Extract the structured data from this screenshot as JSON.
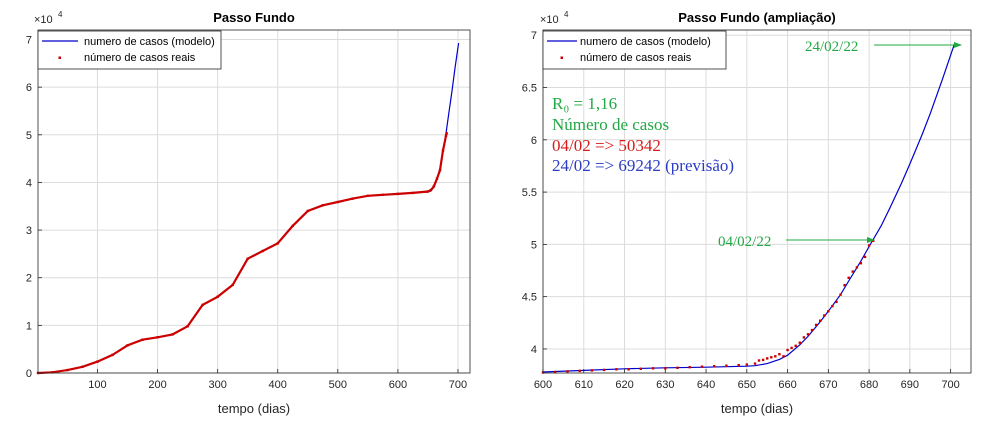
{
  "colors": {
    "model": "#0000cc",
    "real": "#cc0000",
    "green_text": "#22a845",
    "red_text": "#d61b1b",
    "blue_text": "#2b3cc4",
    "arrow": "#22a845",
    "grid": "#dcdcdc",
    "axis": "#262626"
  },
  "chart_data": [
    {
      "type": "line",
      "title": "Passo Fundo",
      "xlabel": "tempo (dias)",
      "ylabel": "",
      "exponent_label": "×10",
      "exponent_power": "4",
      "xlim": [
        1,
        720
      ],
      "ylim": [
        0,
        72000
      ],
      "xticks": [
        100,
        200,
        300,
        400,
        500,
        600,
        700
      ],
      "yticks": [
        0,
        10000,
        20000,
        30000,
        40000,
        50000,
        60000,
        70000
      ],
      "ytick_labels": [
        "0",
        "1",
        "2",
        "3",
        "4",
        "5",
        "6",
        "7"
      ],
      "grid": true,
      "legend_position": "top-left",
      "series": [
        {
          "name": "numero de casos (modelo)",
          "style": "line",
          "x": [
            1,
            25,
            50,
            75,
            100,
            125,
            150,
            175,
            200,
            225,
            250,
            275,
            300,
            325,
            350,
            375,
            400,
            425,
            450,
            475,
            500,
            525,
            550,
            575,
            600,
            625,
            650,
            655,
            660,
            665,
            670,
            675,
            680,
            685,
            690,
            695,
            701
          ],
          "y": [
            0,
            150,
            600,
            1300,
            2400,
            3800,
            5800,
            7000,
            7500,
            8100,
            9800,
            14300,
            16000,
            18500,
            24000,
            25600,
            27200,
            30900,
            34000,
            35200,
            35900,
            36600,
            37200,
            37400,
            37600,
            37800,
            38000,
            38200,
            39000,
            40600,
            42900,
            46500,
            50300,
            54800,
            59200,
            64000,
            69242
          ]
        },
        {
          "name": "número de casos reais",
          "style": "dots",
          "x": [
            1,
            25,
            50,
            75,
            100,
            125,
            150,
            175,
            200,
            225,
            250,
            275,
            300,
            325,
            350,
            375,
            400,
            425,
            450,
            475,
            500,
            525,
            550,
            575,
            600,
            625,
            650,
            655,
            660,
            665,
            670,
            675,
            680,
            681
          ],
          "y": [
            0,
            150,
            600,
            1300,
            2400,
            3800,
            5800,
            7000,
            7500,
            8100,
            9800,
            14300,
            16000,
            18500,
            24000,
            25600,
            27200,
            30900,
            34000,
            35200,
            35900,
            36600,
            37200,
            37400,
            37600,
            37800,
            38100,
            38400,
            39200,
            40800,
            42600,
            46700,
            49800,
            50342
          ]
        }
      ]
    },
    {
      "type": "line",
      "title": "Passo Fundo (ampliação)",
      "xlabel": "tempo (dias)",
      "ylabel": "",
      "exponent_label": "×10",
      "exponent_power": "4",
      "xlim": [
        600,
        705
      ],
      "ylim": [
        37700,
        70500
      ],
      "xticks": [
        600,
        610,
        620,
        630,
        640,
        650,
        660,
        670,
        680,
        690,
        700
      ],
      "yticks": [
        40000,
        45000,
        50000,
        55000,
        60000,
        65000,
        70000
      ],
      "ytick_labels": [
        "4",
        "4.5",
        "5",
        "5.5",
        "6",
        "6.5",
        "7"
      ],
      "grid": true,
      "legend_position": "top-left",
      "series": [
        {
          "name": "numero de casos (modelo)",
          "style": "line",
          "x": [
            600,
            610,
            620,
            630,
            640,
            650,
            652,
            655,
            658,
            660,
            663,
            665,
            668,
            670,
            673,
            675,
            678,
            680,
            683,
            685,
            688,
            690,
            693,
            695,
            698,
            701
          ],
          "y": [
            37800,
            37950,
            38100,
            38200,
            38250,
            38350,
            38400,
            38600,
            39000,
            39400,
            40400,
            41200,
            42600,
            43600,
            45200,
            46500,
            48400,
            49800,
            51800,
            53400,
            55900,
            57700,
            60500,
            62500,
            65800,
            69242
          ]
        },
        {
          "name": "número de casos reais",
          "style": "dots",
          "x": [
            600,
            603,
            606,
            609,
            612,
            615,
            618,
            621,
            624,
            627,
            630,
            633,
            636,
            639,
            642,
            645,
            648,
            650,
            652,
            653,
            654,
            655,
            656,
            657,
            658,
            659,
            660,
            661,
            662,
            663,
            664,
            665,
            666,
            667,
            668,
            669,
            670,
            671,
            672,
            673,
            674,
            675,
            676,
            677,
            678,
            679,
            680,
            681
          ],
          "y": [
            37750,
            37800,
            37850,
            37900,
            37950,
            38000,
            38050,
            38050,
            38100,
            38150,
            38150,
            38200,
            38250,
            38300,
            38350,
            38400,
            38450,
            38500,
            38600,
            38900,
            38950,
            39100,
            39200,
            39300,
            39500,
            39300,
            39900,
            40100,
            40300,
            40600,
            41100,
            41400,
            41800,
            42300,
            42700,
            43200,
            43600,
            44100,
            44500,
            45200,
            46100,
            46800,
            47400,
            47800,
            48200,
            48800,
            49900,
            50342
          ]
        }
      ],
      "annotations": {
        "r0": "R₀ = 1,16",
        "numero_casos": "Número de casos",
        "real_line": "04/02 => 50342",
        "forecast_line": "24/02 => 69242 (previsão)",
        "arrow_feb24": "24/02/22",
        "arrow_feb04": "04/02/22"
      }
    }
  ]
}
